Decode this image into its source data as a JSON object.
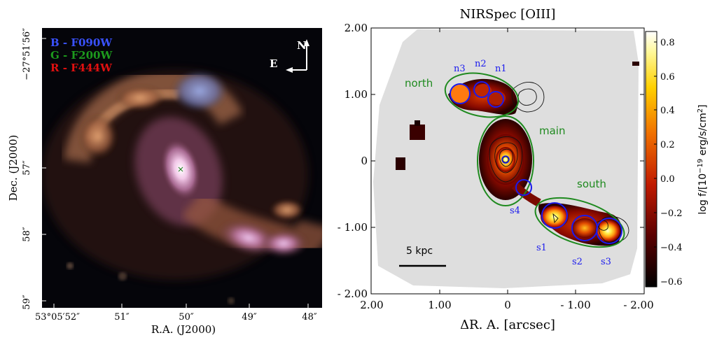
{
  "left_panel": {
    "legend": [
      {
        "label": "B - F090W",
        "color": "#3a52ff"
      },
      {
        "label": "G - F200W",
        "color": "#1d9a1d"
      },
      {
        "label": "R - F444W",
        "color": "#e01010"
      }
    ],
    "compass": {
      "north": "N",
      "east": "E"
    },
    "y_axis_label": "Dec. (J2000)",
    "x_axis_label": "R.A. (J2000)",
    "y_ticks": [
      "−27°51′56″",
      "57″",
      "58″",
      "59″"
    ],
    "x_ticks": [
      "53°05′52″",
      "51″",
      "50″",
      "49″",
      "48″"
    ]
  },
  "right_panel": {
    "title": "NIRSpec [OIII]",
    "x_axis_label": "ΔR. A.  [arcsec]",
    "y_ticks": [
      "2.00",
      "1.00",
      "0",
      "- 1.00",
      "- 2.00"
    ],
    "x_ticks": [
      "2.00",
      "1.00",
      "0",
      "- 1.00",
      "- 2.00"
    ],
    "region_labels": [
      {
        "label": "north",
        "color": "#1f8a1f"
      },
      {
        "label": "main",
        "color": "#1f8a1f"
      },
      {
        "label": "south",
        "color": "#1f8a1f"
      }
    ],
    "aperture_labels": [
      "n3",
      "n2",
      "n1",
      "s4",
      "s1",
      "s2",
      "s3"
    ],
    "aperture_color": "#1a1aee",
    "scale_bar_label": "5 kpc",
    "colorbar": {
      "label": "log f/[10",
      "label_exp": "−19",
      "label_tail": " erg/s/cm",
      "label_exp2": "2",
      "label_end": "]",
      "ticks": [
        "0.8",
        "0.6",
        "0.4",
        "0.2",
        "0.0",
        "−0.2",
        "−0.4",
        "−0.6"
      ]
    }
  }
}
